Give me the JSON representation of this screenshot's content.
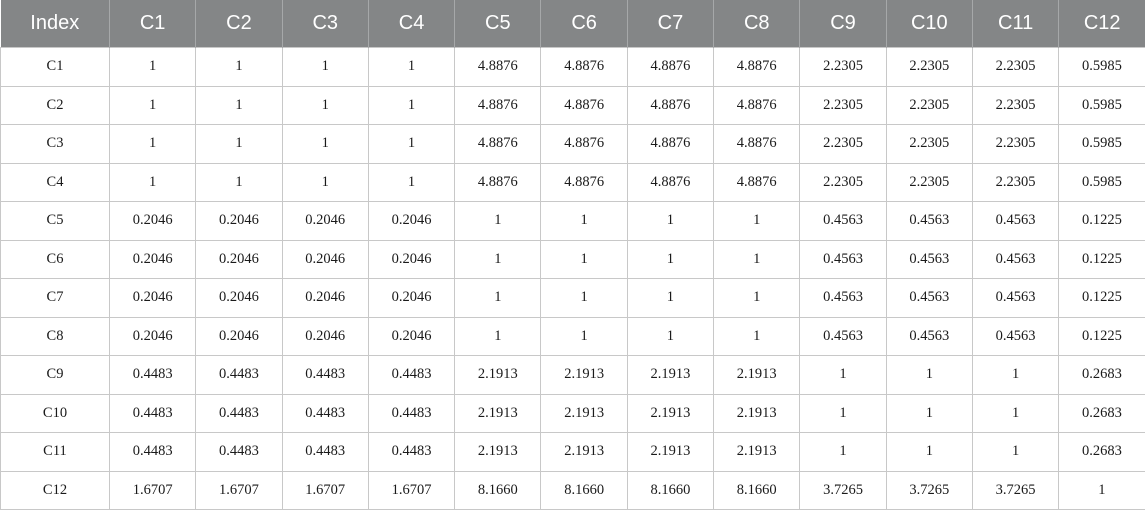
{
  "table": {
    "headers": [
      "Index",
      "C1",
      "C2",
      "C3",
      "C4",
      "C5",
      "C6",
      "C7",
      "C8",
      "C9",
      "C10",
      "C11",
      "C12"
    ],
    "rows": [
      [
        "C1",
        "1",
        "1",
        "1",
        "1",
        "4.8876",
        "4.8876",
        "4.8876",
        "4.8876",
        "2.2305",
        "2.2305",
        "2.2305",
        "0.5985"
      ],
      [
        "C2",
        "1",
        "1",
        "1",
        "1",
        "4.8876",
        "4.8876",
        "4.8876",
        "4.8876",
        "2.2305",
        "2.2305",
        "2.2305",
        "0.5985"
      ],
      [
        "C3",
        "1",
        "1",
        "1",
        "1",
        "4.8876",
        "4.8876",
        "4.8876",
        "4.8876",
        "2.2305",
        "2.2305",
        "2.2305",
        "0.5985"
      ],
      [
        "C4",
        "1",
        "1",
        "1",
        "1",
        "4.8876",
        "4.8876",
        "4.8876",
        "4.8876",
        "2.2305",
        "2.2305",
        "2.2305",
        "0.5985"
      ],
      [
        "C5",
        "0.2046",
        "0.2046",
        "0.2046",
        "0.2046",
        "1",
        "1",
        "1",
        "1",
        "0.4563",
        "0.4563",
        "0.4563",
        "0.1225"
      ],
      [
        "C6",
        "0.2046",
        "0.2046",
        "0.2046",
        "0.2046",
        "1",
        "1",
        "1",
        "1",
        "0.4563",
        "0.4563",
        "0.4563",
        "0.1225"
      ],
      [
        "C7",
        "0.2046",
        "0.2046",
        "0.2046",
        "0.2046",
        "1",
        "1",
        "1",
        "1",
        "0.4563",
        "0.4563",
        "0.4563",
        "0.1225"
      ],
      [
        "C8",
        "0.2046",
        "0.2046",
        "0.2046",
        "0.2046",
        "1",
        "1",
        "1",
        "1",
        "0.4563",
        "0.4563",
        "0.4563",
        "0.1225"
      ],
      [
        "C9",
        "0.4483",
        "0.4483",
        "0.4483",
        "0.4483",
        "2.1913",
        "2.1913",
        "2.1913",
        "2.1913",
        "1",
        "1",
        "1",
        "0.2683"
      ],
      [
        "C10",
        "0.4483",
        "0.4483",
        "0.4483",
        "0.4483",
        "2.1913",
        "2.1913",
        "2.1913",
        "2.1913",
        "1",
        "1",
        "1",
        "0.2683"
      ],
      [
        "C11",
        "0.4483",
        "0.4483",
        "0.4483",
        "0.4483",
        "2.1913",
        "2.1913",
        "2.1913",
        "2.1913",
        "1",
        "1",
        "1",
        "0.2683"
      ],
      [
        "C12",
        "1.6707",
        "1.6707",
        "1.6707",
        "1.6707",
        "8.1660",
        "8.1660",
        "8.1660",
        "8.1660",
        "3.7265",
        "3.7265",
        "3.7265",
        "1"
      ]
    ]
  },
  "colors": {
    "header_bg": "#848687",
    "header_text": "#ffffff",
    "grid_line": "#c8c8c8"
  }
}
